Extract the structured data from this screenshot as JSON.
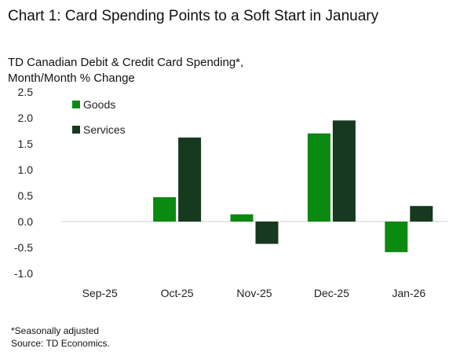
{
  "title": "Chart 1: Card Spending Points to a Soft Start in January",
  "subtitle_line1": "TD Canadian Debit & Credit Card Spending*,",
  "subtitle_line2": "Month/Month % Change",
  "footnote_1": "*Seasonally adjusted",
  "footnote_2": "Source: TD Economics.",
  "chart_data": {
    "type": "bar",
    "title": "Chart 1: Card Spending Points to a Soft Start in January",
    "subtitle": "TD Canadian Debit & Credit Card Spending*, Month/Month % Change",
    "categories": [
      "Sep-25",
      "Oct-25",
      "Nov-25",
      "Dec-25",
      "Jan-26"
    ],
    "series": [
      {
        "name": "Goods",
        "color": "#0a8a10",
        "values": [
          0,
          0.47,
          0.14,
          1.7,
          -0.59
        ]
      },
      {
        "name": "Services",
        "color": "#17391f",
        "values": [
          0,
          1.62,
          -0.43,
          1.95,
          0.3
        ]
      }
    ],
    "ylim": [
      -1.0,
      2.5
    ],
    "yticks": [
      "2.5",
      "2.0",
      "1.5",
      "1.0",
      "0.5",
      "0.0",
      "-0.5",
      "-1.0"
    ],
    "legend_position": "top-left",
    "grid": false,
    "xlabel": "",
    "ylabel": ""
  }
}
